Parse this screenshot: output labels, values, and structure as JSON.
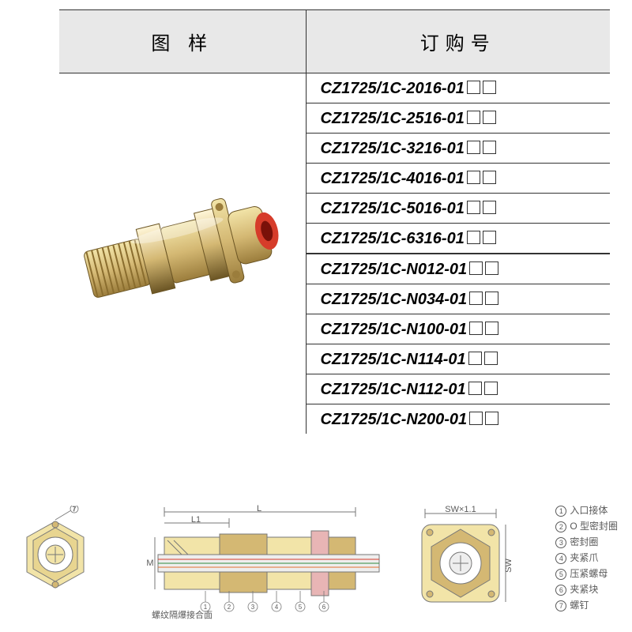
{
  "table": {
    "header_left": "图 样",
    "header_right": "订购号",
    "part_numbers": [
      "CZ1725/1C-2016-01",
      "CZ1725/1C-2516-01",
      "CZ1725/1C-3216-01",
      "CZ1725/1C-4016-01",
      "CZ1725/1C-5016-01",
      "CZ1725/1C-6316-01",
      "CZ1725/1C-N012-01",
      "CZ1725/1C-N034-01",
      "CZ1725/1C-N100-01",
      "CZ1725/1C-N114-01",
      "CZ1725/1C-N112-01",
      "CZ1725/1C-N200-01"
    ],
    "divider_after_index": 5,
    "header_bg": "#e8e8e8",
    "border_color": "#333333",
    "part_font_size": 20
  },
  "diagram": {
    "thread_note": "螺纹隔爆接合面",
    "dim_L": "L",
    "dim_L1": "L1",
    "dim_M": "M",
    "dim_SW": "SW",
    "dim_SW11": "SW×1.1",
    "callouts": [
      "1",
      "2",
      "3",
      "4",
      "5",
      "6",
      "7"
    ]
  },
  "legend": {
    "items": [
      {
        "n": "1",
        "label": "入口接体"
      },
      {
        "n": "2",
        "label": "O 型密封圈"
      },
      {
        "n": "3",
        "label": "密封圈"
      },
      {
        "n": "4",
        "label": "夹紧爪"
      },
      {
        "n": "5",
        "label": "压紧螺母"
      },
      {
        "n": "6",
        "label": "夹紧块"
      },
      {
        "n": "7",
        "label": "螺钉"
      }
    ]
  },
  "colors": {
    "brass_light": "#f2e4a8",
    "brass_mid": "#d4b873",
    "brass_dark": "#9b7d3c",
    "red": "#d63c2a",
    "gray": "#888888",
    "diagram_stroke": "#777777",
    "green": "#2e8b3d",
    "orange": "#e07030",
    "pink": "#e8b5b5"
  }
}
